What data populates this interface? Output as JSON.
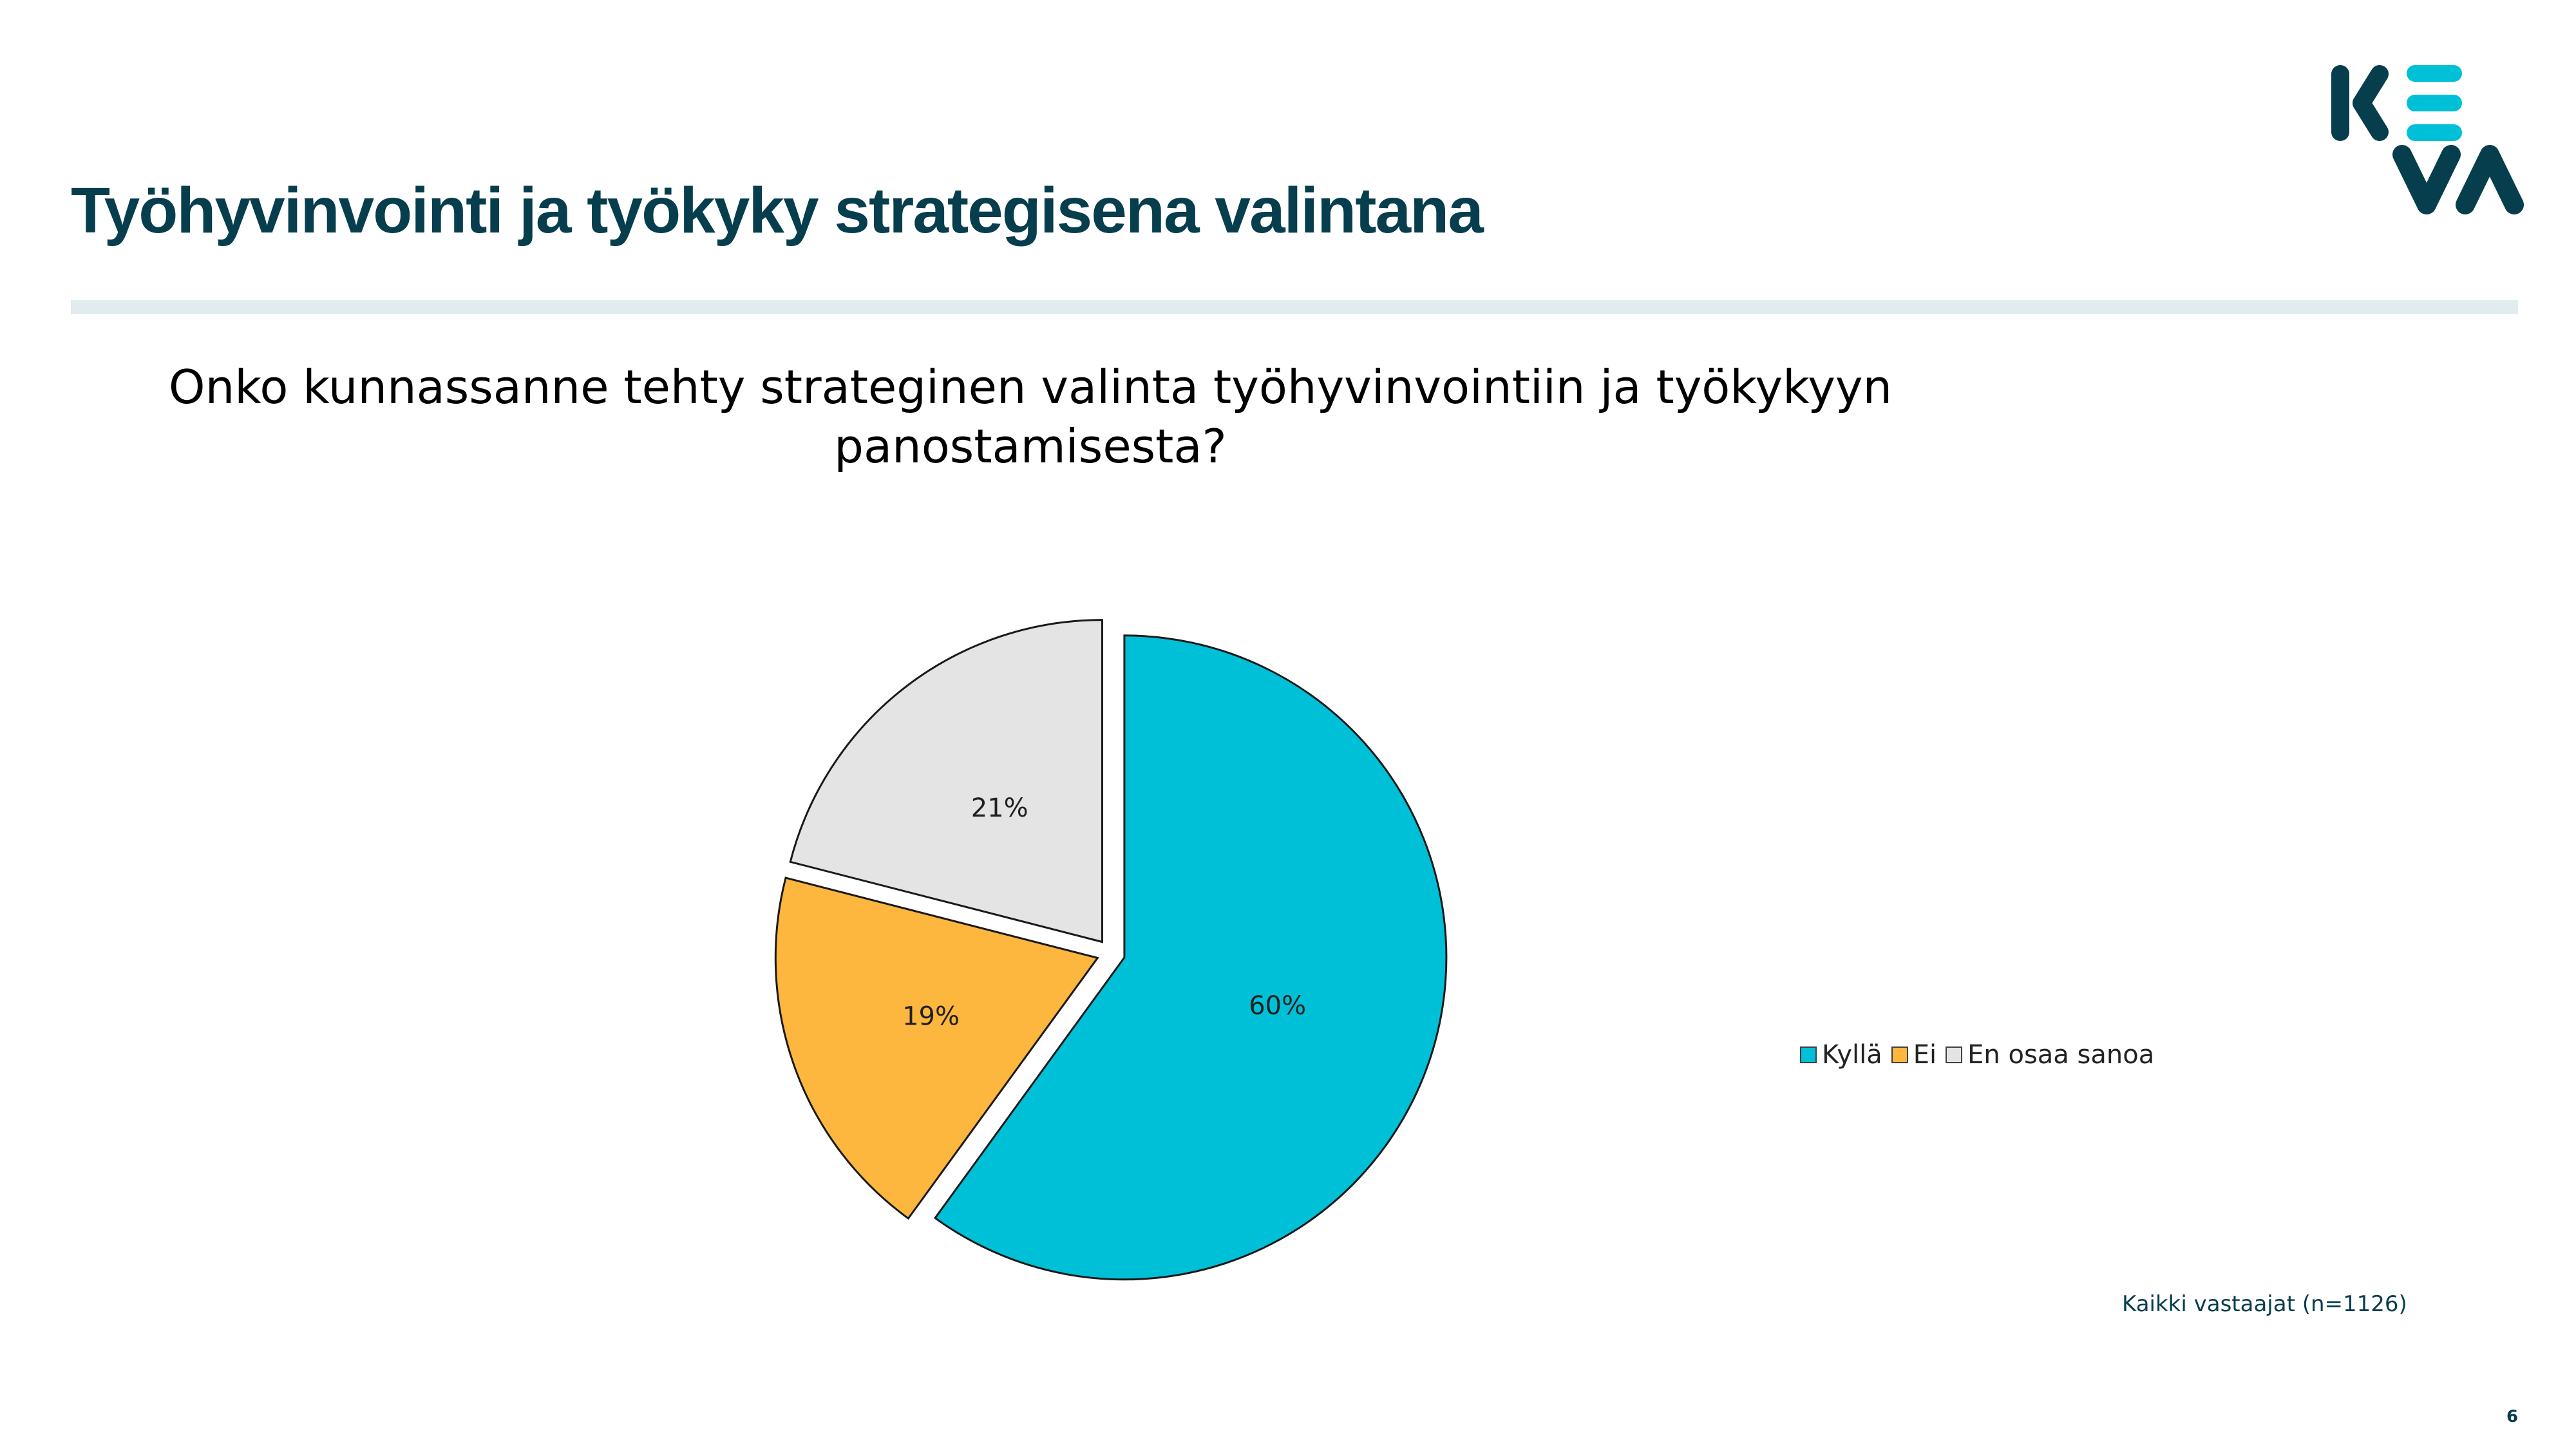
{
  "header": {
    "title": "Työhyvinvointi ja työkyky strategisena valintana",
    "logo_text": "KEVA",
    "logo_colors": {
      "dark": "#073e4d",
      "accent": "#00c0d8"
    }
  },
  "chart_data": {
    "type": "pie",
    "title_lines": [
      "Onko kunnassanne tehty strateginen valinta työhyvinvointiin ja työkykyyn",
      "panostamisesta?"
    ],
    "categories": [
      "Kyllä",
      "Ei",
      "En osaa sanoa"
    ],
    "values": [
      60,
      19,
      21
    ],
    "data_labels": [
      "60%",
      "19%",
      "21%"
    ],
    "colors": [
      "#00c0d8",
      "#fdb63e",
      "#e4e4e4"
    ],
    "exploded": true,
    "legend_position": "right"
  },
  "footer": {
    "note": "Kaikki vastaajat (n=1126)",
    "page_number": "6"
  }
}
